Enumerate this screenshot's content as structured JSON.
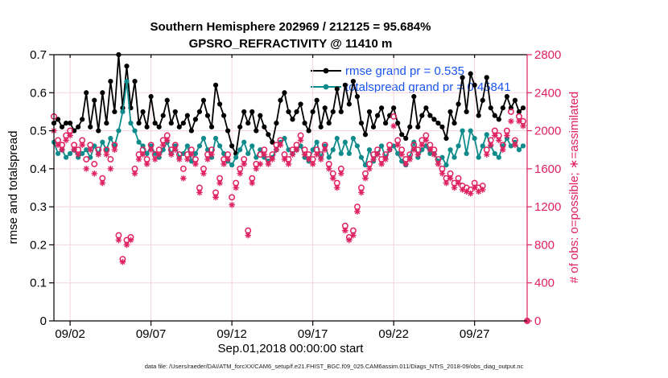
{
  "chart_data": {
    "type": "line",
    "title_line1": "Southern Hemisphere 202969 / 212125 = 95.684%",
    "title_line2": "GPSRO_REFRACTIVITY @ 11410 m",
    "footer": "data file: /Users/raeder/DAI/ATM_forcXX/CAM6_setup/f.e21.FHIST_BGC.f09_025.CAM6assim.011/Diags_NTrS_2018-09/obs_diag_output.nc",
    "grid_color": "#f5d3de",
    "legend_text_color": "#1b55f0",
    "left_axis": {
      "label": "rmse and totalspread",
      "color": "#000000",
      "min": 0,
      "max": 0.7,
      "ticks": [
        0,
        0.1,
        0.2,
        0.3,
        0.4,
        0.5,
        0.6,
        0.7
      ],
      "tick_labels": [
        "0",
        "0.1",
        "0.2",
        "0.3",
        "0.4",
        "0.5",
        "0.6",
        "0.7"
      ]
    },
    "right_axis": {
      "label": "# of obs: o=possible; ∗=assimilated",
      "color": "#e0215f",
      "min": 0,
      "max": 2800,
      "ticks": [
        0,
        400,
        800,
        1200,
        1600,
        2000,
        2400,
        2800
      ],
      "tick_labels": [
        "0",
        "400",
        "800",
        "1200",
        "1600",
        "2000",
        "2400",
        "2800"
      ]
    },
    "x_axis": {
      "label": "Sep.01,2018 00:00:00 start",
      "n_points": 118,
      "tick_indices": [
        4,
        24,
        44,
        64,
        84,
        104
      ],
      "tick_labels": [
        "09/02",
        "09/07",
        "09/12",
        "09/17",
        "09/22",
        "09/27"
      ]
    },
    "legend": [
      {
        "label": "rmse grand pr = 0.535",
        "color": "#000000"
      },
      {
        "label": "totalspread grand pr = 0.45841",
        "color": "#0f8b8b"
      }
    ],
    "series": [
      {
        "name": "rmse",
        "axis": "left",
        "color": "#000000",
        "marker": "dot",
        "values": [
          0.52,
          0.53,
          0.51,
          0.52,
          0.52,
          0.5,
          0.51,
          0.53,
          0.6,
          0.51,
          0.58,
          0.5,
          0.6,
          0.52,
          0.63,
          0.55,
          0.7,
          0.56,
          0.67,
          0.56,
          0.63,
          0.52,
          0.55,
          0.51,
          0.59,
          0.52,
          0.51,
          0.54,
          0.58,
          0.52,
          0.55,
          0.51,
          0.52,
          0.54,
          0.5,
          0.53,
          0.55,
          0.58,
          0.54,
          0.51,
          0.62,
          0.57,
          0.54,
          0.5,
          0.46,
          0.44,
          0.51,
          0.55,
          0.52,
          0.55,
          0.5,
          0.54,
          0.51,
          0.49,
          0.47,
          0.52,
          0.58,
          0.6,
          0.55,
          0.53,
          0.55,
          0.57,
          0.52,
          0.5,
          0.55,
          0.58,
          0.51,
          0.56,
          0.52,
          0.55,
          0.61,
          0.55,
          0.62,
          0.57,
          0.63,
          0.59,
          0.52,
          0.49,
          0.55,
          0.51,
          0.54,
          0.56,
          0.52,
          0.54,
          0.56,
          0.52,
          0.49,
          0.48,
          0.51,
          0.59,
          0.51,
          0.54,
          0.56,
          0.54,
          0.53,
          0.52,
          0.51,
          0.48,
          0.55,
          0.52,
          0.57,
          0.64,
          0.55,
          0.65,
          0.62,
          0.54,
          0.58,
          0.64,
          0.56,
          0.54,
          0.53,
          0.56,
          0.59,
          0.56,
          0.58,
          0.55,
          0.56
        ]
      },
      {
        "name": "totalspread",
        "axis": "left",
        "color": "#0f8b8b",
        "marker": "dot",
        "values": [
          0.47,
          0.44,
          0.45,
          0.43,
          0.44,
          0.45,
          0.43,
          0.44,
          0.45,
          0.43,
          0.46,
          0.44,
          0.47,
          0.45,
          0.48,
          0.46,
          0.5,
          0.55,
          0.63,
          0.52,
          0.5,
          0.47,
          0.46,
          0.44,
          0.46,
          0.44,
          0.43,
          0.45,
          0.47,
          0.44,
          0.46,
          0.43,
          0.44,
          0.46,
          0.42,
          0.44,
          0.46,
          0.48,
          0.45,
          0.43,
          0.48,
          0.46,
          0.44,
          0.42,
          0.41,
          0.43,
          0.45,
          0.47,
          0.44,
          0.46,
          0.43,
          0.45,
          0.43,
          0.42,
          0.43,
          0.45,
          0.47,
          0.48,
          0.45,
          0.44,
          0.45,
          0.46,
          0.43,
          0.42,
          0.45,
          0.47,
          0.43,
          0.46,
          0.43,
          0.45,
          0.48,
          0.44,
          0.47,
          0.44,
          0.48,
          0.46,
          0.43,
          0.41,
          0.45,
          0.42,
          0.44,
          0.46,
          0.43,
          0.45,
          0.46,
          0.44,
          0.42,
          0.41,
          0.43,
          0.47,
          0.43,
          0.45,
          0.46,
          0.44,
          0.44,
          0.42,
          0.43,
          0.41,
          0.45,
          0.43,
          0.46,
          0.5,
          0.44,
          0.5,
          0.48,
          0.43,
          0.46,
          0.49,
          0.46,
          0.44,
          0.43,
          0.46,
          0.48,
          0.46,
          0.47,
          0.45,
          0.46
        ]
      },
      {
        "name": "possible-obs",
        "axis": "right",
        "color": "#e0215f",
        "marker": "circle-open",
        "values": [
          2150,
          1900,
          1850,
          1950,
          2000,
          1850,
          1800,
          1900,
          1700,
          1850,
          1650,
          1800,
          1500,
          1800,
          1700,
          1850,
          900,
          650,
          850,
          880,
          1600,
          1750,
          1800,
          1700,
          1850,
          1750,
          1800,
          1900,
          1950,
          1800,
          1850,
          1750,
          1600,
          1750,
          1800,
          1700,
          1400,
          1600,
          1750,
          1800,
          1350,
          1500,
          1700,
          1750,
          1300,
          1450,
          1600,
          1700,
          950,
          1500,
          1650,
          1750,
          1800,
          1700,
          1750,
          1850,
          1900,
          1750,
          1700,
          1800,
          1850,
          1950,
          1800,
          1750,
          1700,
          1800,
          1750,
          1850,
          1650,
          1550,
          1450,
          1600,
          1000,
          880,
          950,
          1200,
          1400,
          1550,
          1650,
          1750,
          1800,
          1700,
          1750,
          1850,
          2150,
          1900,
          1800,
          1700,
          1750,
          1850,
          1800,
          1900,
          1950,
          1850,
          1800,
          1700,
          1600,
          1500,
          1550,
          1450,
          1500,
          1420,
          1400,
          1380,
          1450,
          1400,
          1420,
          1800,
          1900,
          2000,
          1950,
          1850,
          2000,
          2200,
          1900,
          2150,
          2100,
          0
        ]
      },
      {
        "name": "assimilated-obs",
        "axis": "right",
        "color": "#e0215f",
        "marker": "asterisk",
        "values": [
          2000,
          1850,
          1800,
          1900,
          1950,
          1800,
          1750,
          1850,
          1600,
          1800,
          1550,
          1750,
          1450,
          1750,
          1600,
          1800,
          850,
          620,
          800,
          850,
          1550,
          1700,
          1750,
          1650,
          1800,
          1700,
          1750,
          1850,
          1900,
          1750,
          1800,
          1700,
          1500,
          1700,
          1750,
          1650,
          1350,
          1550,
          1700,
          1750,
          1300,
          1450,
          1650,
          1700,
          1220,
          1400,
          1550,
          1650,
          900,
          1450,
          1600,
          1650,
          1750,
          1650,
          1700,
          1800,
          1850,
          1700,
          1650,
          1750,
          1800,
          1900,
          1750,
          1700,
          1650,
          1750,
          1700,
          1800,
          1600,
          1500,
          1400,
          1550,
          950,
          850,
          900,
          1150,
          1350,
          1500,
          1600,
          1700,
          1750,
          1650,
          1700,
          1800,
          2050,
          1850,
          1750,
          1650,
          1700,
          1800,
          1750,
          1850,
          1900,
          1800,
          1750,
          1650,
          1550,
          1450,
          1500,
          1400,
          1450,
          1380,
          1360,
          1340,
          1400,
          1360,
          1380,
          1750,
          1850,
          1950,
          1900,
          1800,
          1950,
          2100,
          1850,
          2100,
          2050,
          0
        ]
      }
    ]
  }
}
